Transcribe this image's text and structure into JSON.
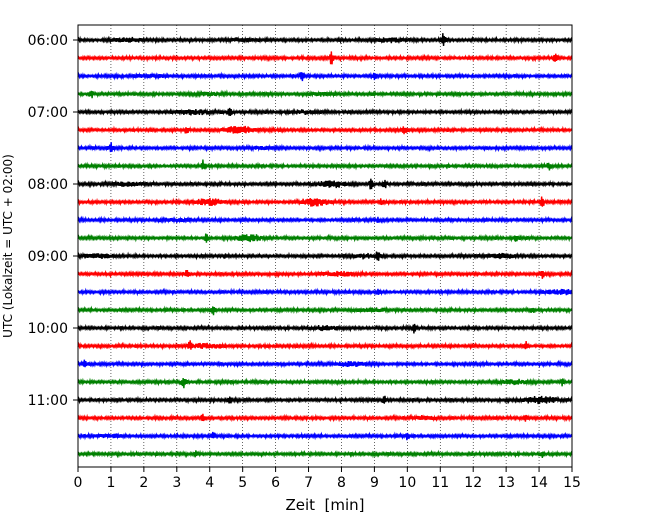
{
  "chart_data": {
    "type": "line",
    "title": "",
    "xlabel": "Zeit  [min]",
    "ylabel": "UTC (Lokalzeit = UTC + 02:00)",
    "xlim": [
      0,
      15
    ],
    "x_ticks": [
      "0",
      "1",
      "2",
      "3",
      "4",
      "5",
      "6",
      "7",
      "8",
      "9",
      "10",
      "11",
      "12",
      "13",
      "14",
      "15"
    ],
    "grid": "vertical dotted at each minute",
    "rows_per_hour": 4,
    "row_interval_minutes": 15,
    "first_row_time": "06:00",
    "y_tick_labels": [
      "06:00",
      "07:00",
      "08:00",
      "09:00",
      "10:00",
      "11:00"
    ],
    "trace_colors": [
      "#000000",
      "#ff0000",
      "#0000ff",
      "#008000"
    ],
    "traces": [
      {
        "start": "06:00",
        "color": "#000000",
        "events": [
          [
            11.1,
            1.0
          ]
        ],
        "bursts": [
          [
            1.5,
            0.5
          ],
          [
            5.0,
            0.4
          ],
          [
            9.5,
            0.5
          ]
        ]
      },
      {
        "start": "06:15",
        "color": "#ff0000",
        "events": [
          [
            7.7,
            1.0
          ],
          [
            14.5,
            0.5
          ]
        ],
        "bursts": []
      },
      {
        "start": "06:30",
        "color": "#0000ff",
        "events": [
          [
            6.8,
            0.8
          ],
          [
            9.0,
            0.4
          ]
        ],
        "bursts": [
          [
            2.0,
            0.3
          ]
        ]
      },
      {
        "start": "06:45",
        "color": "#008000",
        "events": [
          [
            0.4,
            0.5
          ]
        ],
        "bursts": [
          [
            4.0,
            0.4
          ],
          [
            7.5,
            0.3
          ]
        ]
      },
      {
        "start": "07:00",
        "color": "#000000",
        "events": [
          [
            4.6,
            1.0
          ]
        ],
        "bursts": [
          [
            3.5,
            0.6
          ],
          [
            7.0,
            0.4
          ]
        ]
      },
      {
        "start": "07:15",
        "color": "#ff0000",
        "events": [
          [
            3.3,
            0.6
          ],
          [
            9.9,
            0.5
          ]
        ],
        "bursts": [
          [
            4.9,
            0.9
          ]
        ]
      },
      {
        "start": "07:30",
        "color": "#0000ff",
        "events": [
          [
            1.0,
            0.8
          ]
        ],
        "bursts": [
          [
            5.5,
            0.3
          ]
        ]
      },
      {
        "start": "07:45",
        "color": "#008000",
        "events": [
          [
            3.8,
            0.9
          ],
          [
            14.3,
            0.6
          ]
        ],
        "bursts": []
      },
      {
        "start": "08:00",
        "color": "#000000",
        "events": [
          [
            8.9,
            0.8
          ],
          [
            9.3,
            0.6
          ]
        ],
        "bursts": [
          [
            1.5,
            0.5
          ],
          [
            7.7,
            0.9
          ]
        ]
      },
      {
        "start": "08:15",
        "color": "#ff0000",
        "events": [
          [
            9.2,
            0.4
          ],
          [
            14.1,
            0.7
          ]
        ],
        "bursts": [
          [
            4.0,
            0.9
          ],
          [
            7.2,
            1.0
          ]
        ]
      },
      {
        "start": "08:30",
        "color": "#0000ff",
        "events": [
          [
            9.1,
            0.4
          ]
        ],
        "bursts": [
          [
            3.0,
            0.3
          ]
        ]
      },
      {
        "start": "08:45",
        "color": "#008000",
        "events": [
          [
            3.9,
            0.6
          ],
          [
            13.3,
            0.4
          ]
        ],
        "bursts": [
          [
            5.2,
            0.8
          ]
        ]
      },
      {
        "start": "09:00",
        "color": "#000000",
        "events": [
          [
            4.5,
            0.4
          ],
          [
            9.1,
            0.6
          ]
        ],
        "bursts": [
          [
            0.6,
            0.5
          ],
          [
            8.7,
            0.5
          ],
          [
            12.8,
            0.5
          ]
        ]
      },
      {
        "start": "09:15",
        "color": "#ff0000",
        "events": [
          [
            3.3,
            0.5
          ],
          [
            14.1,
            0.8
          ]
        ],
        "bursts": [
          [
            8.0,
            0.5
          ]
        ]
      },
      {
        "start": "09:30",
        "color": "#0000ff",
        "events": [
          [
            9.1,
            0.4
          ]
        ],
        "bursts": [
          [
            14.6,
            0.6
          ]
        ]
      },
      {
        "start": "09:45",
        "color": "#008000",
        "events": [
          [
            4.1,
            0.7
          ],
          [
            13.8,
            0.5
          ]
        ],
        "bursts": [
          [
            8.9,
            0.4
          ]
        ]
      },
      {
        "start": "10:00",
        "color": "#000000",
        "events": [
          [
            10.2,
            0.9
          ]
        ],
        "bursts": [
          [
            7.5,
            0.5
          ]
        ]
      },
      {
        "start": "10:15",
        "color": "#ff0000",
        "events": [
          [
            3.4,
            0.5
          ],
          [
            13.6,
            0.6
          ]
        ],
        "bursts": [
          [
            3.9,
            0.7
          ]
        ]
      },
      {
        "start": "10:30",
        "color": "#0000ff",
        "events": [
          [
            0.2,
            0.5
          ]
        ],
        "bursts": [
          [
            8.3,
            0.6
          ]
        ]
      },
      {
        "start": "10:45",
        "color": "#008000",
        "events": [
          [
            3.2,
            0.9
          ],
          [
            14.7,
            0.5
          ]
        ],
        "bursts": [
          [
            13.2,
            0.6
          ]
        ]
      },
      {
        "start": "11:00",
        "color": "#000000",
        "events": [
          [
            4.6,
            0.5
          ],
          [
            9.3,
            0.5
          ]
        ],
        "bursts": [
          [
            14.0,
            1.0
          ]
        ]
      },
      {
        "start": "11:15",
        "color": "#ff0000",
        "events": [
          [
            3.8,
            0.6
          ],
          [
            13.6,
            0.5
          ]
        ],
        "bursts": [
          [
            10.5,
            0.4
          ]
        ]
      },
      {
        "start": "11:30",
        "color": "#0000ff",
        "events": [
          [
            4.1,
            0.5
          ],
          [
            10.0,
            0.5
          ]
        ],
        "bursts": [
          [
            1.0,
            0.4
          ]
        ]
      },
      {
        "start": "11:45",
        "color": "#008000",
        "events": [
          [
            3.6,
            0.5
          ],
          [
            14.1,
            0.5
          ]
        ],
        "bursts": []
      }
    ]
  }
}
